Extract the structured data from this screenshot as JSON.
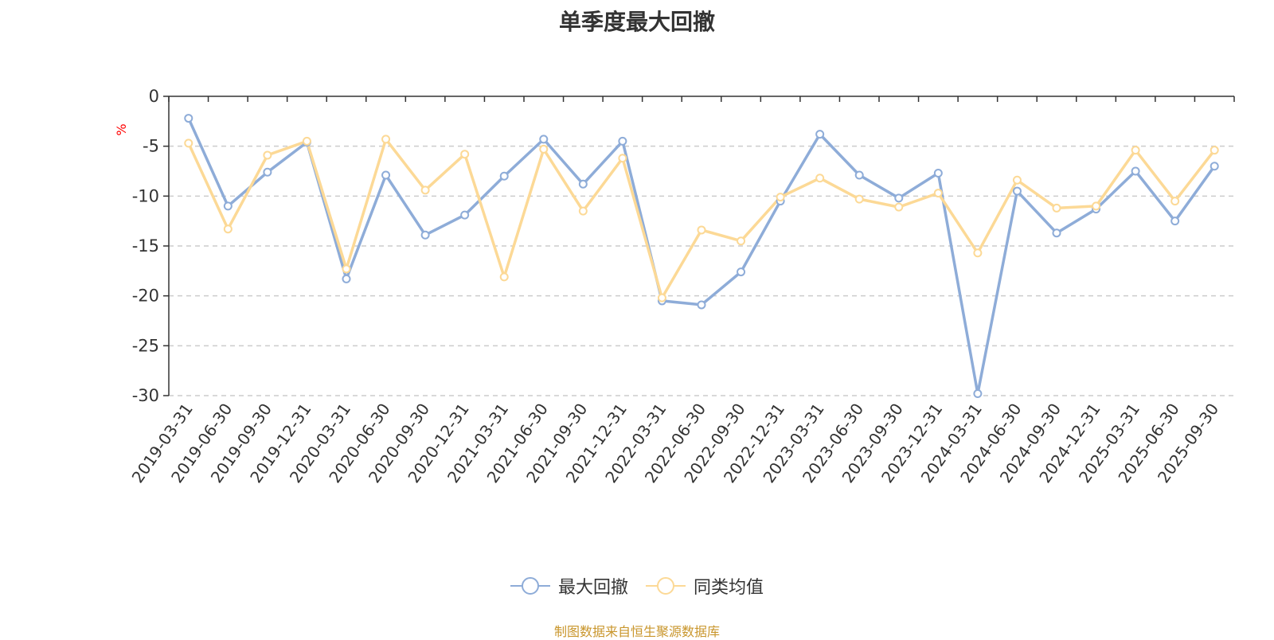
{
  "chart_data": {
    "type": "line",
    "title": "单季度最大回撤",
    "ylabel": "%",
    "xlabel": "",
    "ylim": [
      -30,
      0
    ],
    "yticks": [
      0,
      -5,
      -10,
      -15,
      -20,
      -25,
      -30
    ],
    "grid": true,
    "legend_position": "bottom",
    "categories": [
      "2019-03-31",
      "2019-06-30",
      "2019-09-30",
      "2019-12-31",
      "2020-03-31",
      "2020-06-30",
      "2020-09-30",
      "2020-12-31",
      "2021-03-31",
      "2021-06-30",
      "2021-09-30",
      "2021-12-31",
      "2022-03-31",
      "2022-06-30",
      "2022-09-30",
      "2022-12-31",
      "2023-03-31",
      "2023-06-30",
      "2023-09-30",
      "2023-12-31",
      "2024-03-31",
      "2024-06-30",
      "2024-09-30",
      "2024-12-31",
      "2025-03-31",
      "2025-06-30",
      "2025-09-30"
    ],
    "series": [
      {
        "name": "最大回撤",
        "color": "#8eacd8",
        "values": [
          -2.2,
          -11.0,
          -7.6,
          -4.6,
          -18.3,
          -7.9,
          -13.9,
          -11.9,
          -8.0,
          -4.3,
          -8.8,
          -4.5,
          -20.5,
          -20.9,
          -17.6,
          -10.5,
          -3.8,
          -7.9,
          -10.2,
          -7.7,
          -29.8,
          -9.5,
          -13.7,
          -11.3,
          -7.5,
          -12.5,
          -7.0
        ]
      },
      {
        "name": "同类均值",
        "color": "#fcd996",
        "values": [
          -4.7,
          -13.3,
          -5.9,
          -4.5,
          -17.3,
          -4.3,
          -9.4,
          -5.8,
          -18.1,
          -5.3,
          -11.5,
          -6.2,
          -20.2,
          -13.4,
          -14.5,
          -10.1,
          -8.2,
          -10.3,
          -11.1,
          -9.7,
          -15.7,
          -8.4,
          -11.2,
          -11.0,
          -5.4,
          -10.5,
          -5.4
        ]
      }
    ]
  },
  "footer": {
    "source": "制图数据来自恒生聚源数据库"
  }
}
